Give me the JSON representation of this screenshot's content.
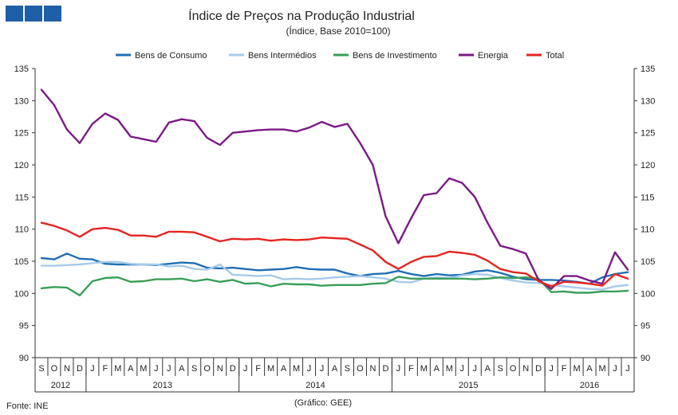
{
  "chart_data": {
    "type": "line",
    "title": "Índice de Preços na Produção Industrial",
    "subtitle": "(Índice, Base 2010=100)",
    "xlabel": "",
    "ylabel": "",
    "ylim": [
      90,
      135
    ],
    "yticks": [
      90,
      95,
      100,
      105,
      110,
      115,
      120,
      125,
      130,
      135
    ],
    "grid": false,
    "legend_position": "top",
    "months": [
      "S",
      "O",
      "N",
      "D",
      "J",
      "F",
      "M",
      "A",
      "M",
      "J",
      "J",
      "A",
      "S",
      "O",
      "N",
      "D",
      "J",
      "F",
      "M",
      "A",
      "M",
      "J",
      "J",
      "A",
      "S",
      "O",
      "N",
      "D",
      "J",
      "F",
      "M",
      "A",
      "M",
      "J",
      "J",
      "A",
      "S",
      "O",
      "N",
      "D",
      "J",
      "F",
      "M",
      "A",
      "M",
      "J",
      "J"
    ],
    "years": [
      {
        "label": "2012",
        "span": 4
      },
      {
        "label": "2013",
        "span": 12
      },
      {
        "label": "2014",
        "span": 12
      },
      {
        "label": "2015",
        "span": 12
      },
      {
        "label": "2016",
        "span": 7
      }
    ],
    "series": [
      {
        "name": "Bens de Consumo",
        "color": "#1f6fb5",
        "values": [
          105.5,
          105.3,
          106.2,
          105.4,
          105.3,
          104.6,
          104.5,
          104.5,
          104.5,
          104.4,
          104.6,
          104.8,
          104.7,
          104.0,
          103.9,
          104.0,
          103.8,
          103.6,
          103.7,
          103.8,
          104.1,
          103.8,
          103.7,
          103.7,
          103.1,
          102.7,
          103.0,
          103.1,
          103.5,
          103.0,
          102.7,
          103.0,
          102.8,
          102.9,
          103.4,
          103.6,
          103.2,
          102.6,
          102.2,
          102.1,
          102.1,
          102.0,
          101.8,
          101.5,
          102.5,
          103.0,
          103.3
        ]
      },
      {
        "name": "Bens Intermédios",
        "color": "#a6cbea",
        "values": [
          104.3,
          104.3,
          104.4,
          104.5,
          104.7,
          104.9,
          104.9,
          104.6,
          104.5,
          104.5,
          104.2,
          104.3,
          103.8,
          103.7,
          104.5,
          102.9,
          102.8,
          102.7,
          102.8,
          102.2,
          102.3,
          102.2,
          102.3,
          102.5,
          102.6,
          102.7,
          102.5,
          102.3,
          101.8,
          101.7,
          102.3,
          102.5,
          102.4,
          102.8,
          103.0,
          102.9,
          102.4,
          102.0,
          101.7,
          101.6,
          101.3,
          101.1,
          100.9,
          100.7,
          100.6,
          101.1,
          101.3
        ]
      },
      {
        "name": "Bens de Investimento",
        "color": "#3a9e58",
        "values": [
          100.8,
          101.0,
          100.9,
          99.7,
          101.9,
          102.4,
          102.5,
          101.8,
          101.9,
          102.2,
          102.2,
          102.3,
          101.9,
          102.2,
          101.8,
          102.1,
          101.5,
          101.6,
          101.1,
          101.5,
          101.4,
          101.4,
          101.2,
          101.3,
          101.3,
          101.3,
          101.5,
          101.6,
          102.6,
          102.3,
          102.3,
          102.3,
          102.3,
          102.3,
          102.2,
          102.3,
          102.5,
          102.4,
          102.5,
          102.3,
          100.2,
          100.3,
          100.1,
          100.1,
          100.3,
          100.3,
          100.4
        ]
      },
      {
        "name": "Energia",
        "color": "#7b1a86",
        "values": [
          131.7,
          129.3,
          125.5,
          123.4,
          126.4,
          128.0,
          127.0,
          124.4,
          124.0,
          123.6,
          126.6,
          127.1,
          126.8,
          124.2,
          123.1,
          125.0,
          125.2,
          125.4,
          125.5,
          125.5,
          125.2,
          125.8,
          126.7,
          125.9,
          126.4,
          123.4,
          120.0,
          112.0,
          107.8,
          111.7,
          115.3,
          115.6,
          117.9,
          117.2,
          115.0,
          111.0,
          107.4,
          106.9,
          106.2,
          102.1,
          100.7,
          102.7,
          102.7,
          102.0,
          101.5,
          106.4,
          103.7
        ]
      },
      {
        "name": "Total",
        "color": "#e52521",
        "values": [
          111.0,
          110.5,
          109.8,
          108.8,
          110.0,
          110.2,
          109.9,
          109.0,
          109.0,
          108.8,
          109.6,
          109.6,
          109.5,
          108.8,
          108.1,
          108.5,
          108.4,
          108.5,
          108.2,
          108.4,
          108.3,
          108.4,
          108.7,
          108.6,
          108.5,
          107.6,
          106.7,
          104.9,
          103.8,
          104.9,
          105.7,
          105.8,
          106.5,
          106.3,
          106.0,
          105.1,
          103.8,
          103.3,
          103.1,
          101.9,
          101.1,
          101.8,
          101.7,
          101.5,
          101.2,
          103.0,
          102.3
        ]
      }
    ]
  },
  "source_note": "Fonte: INE",
  "chart_credit": "(Gráfico: GEE)"
}
